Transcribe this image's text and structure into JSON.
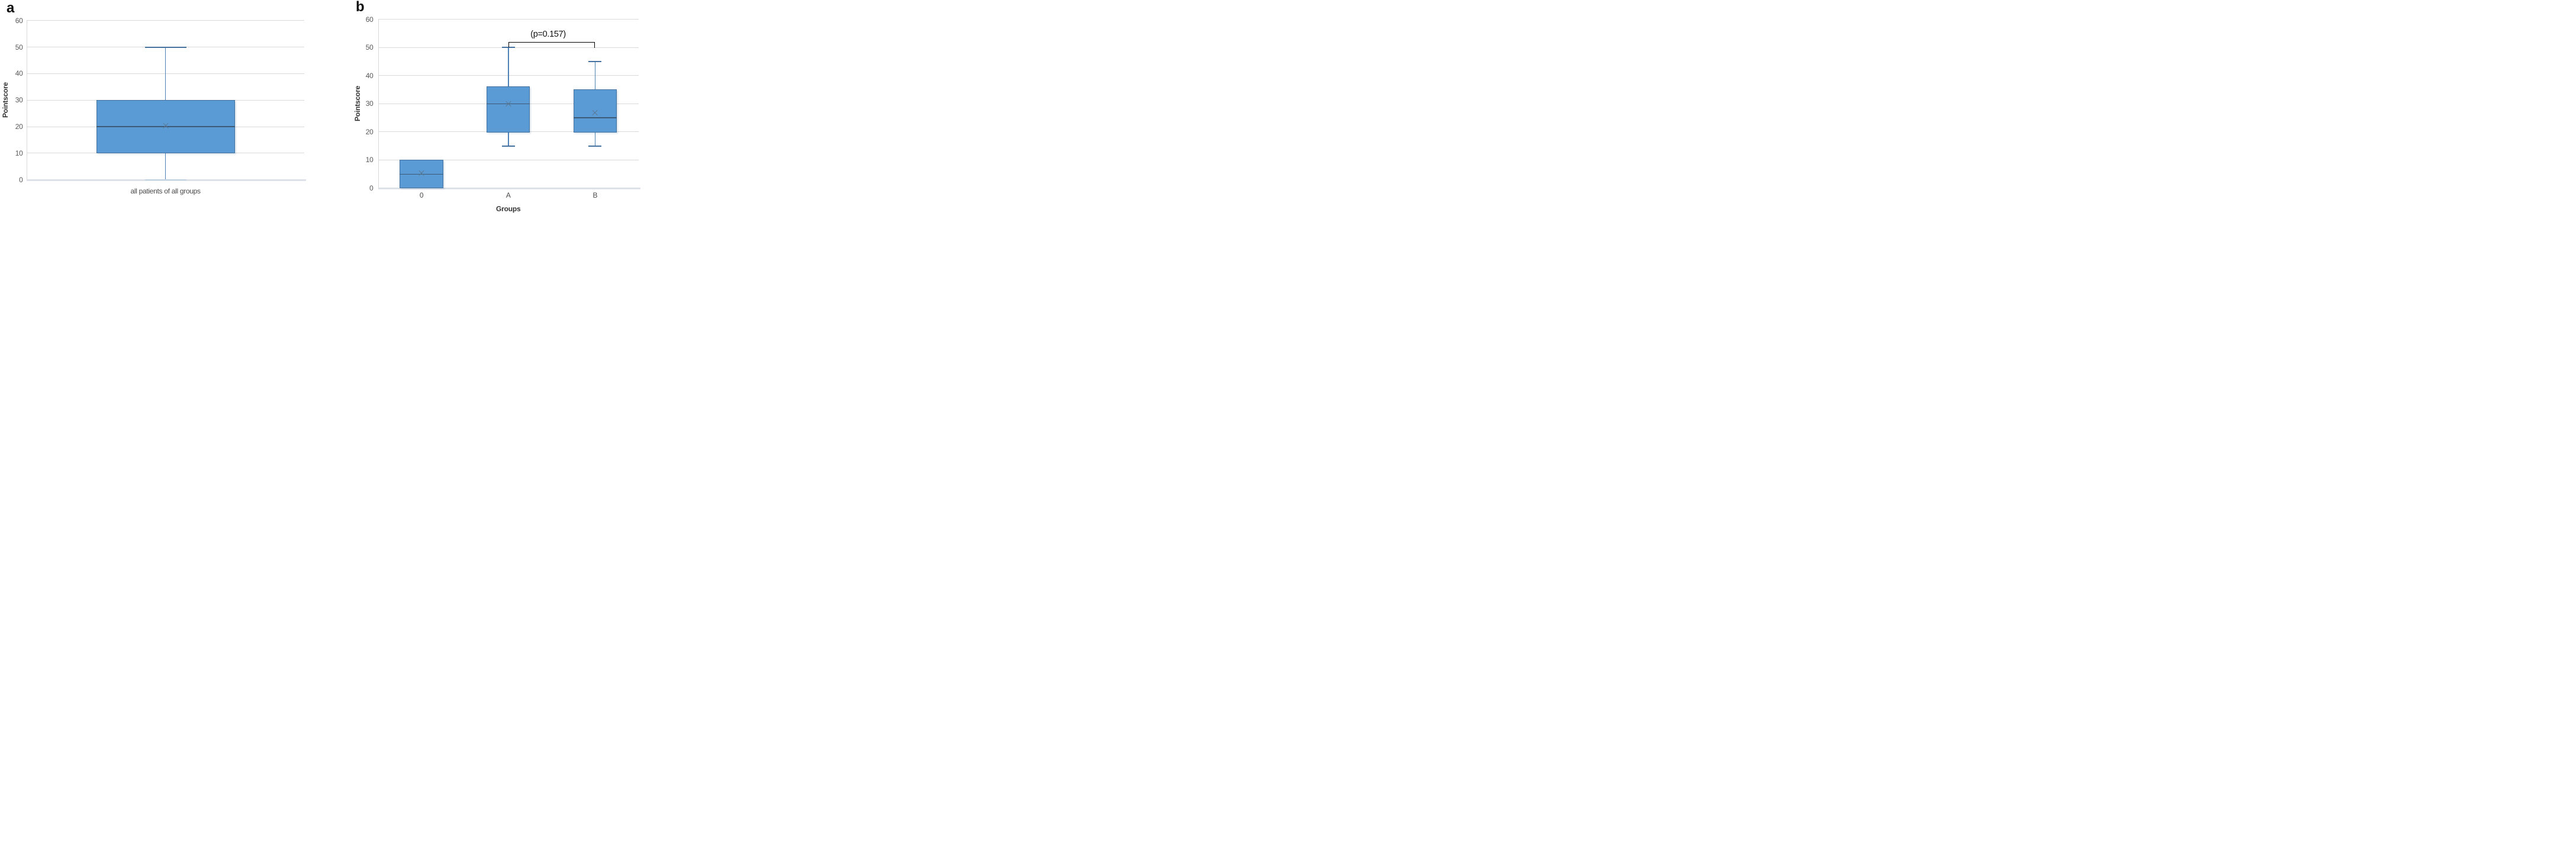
{
  "figure_title": "",
  "colors": {
    "box_fill": "#5B9BD5",
    "box_border": "#41719C",
    "whisker_line": "#4D82B8",
    "whisker_cap": "#41719C",
    "whisker_cap_at_zero": "#C2D3E4",
    "median_line": "#3D5A76",
    "mean_marker": "#5B7691",
    "gridline": "#D9D9D9",
    "axis_line": "#DDE2E8",
    "tick_label": "#595959",
    "axis_title": "#333333",
    "panel_letter": "#111111",
    "annotation": "#000000"
  },
  "chart_data": [
    {
      "panel": "a",
      "type": "box",
      "title": "",
      "ylabel": "Pointscore",
      "xlabel": "",
      "ylim": [
        0,
        60
      ],
      "yticks": [
        0,
        10,
        20,
        30,
        40,
        50,
        60
      ],
      "grid": "horizontal",
      "legend": "none",
      "mean_marker": "x",
      "categories": [
        "all patients of all groups"
      ],
      "boxes": [
        {
          "category": "all patients of all groups",
          "whisker_low": 0,
          "q1": 10,
          "median": 20,
          "q3": 30,
          "whisker_high": 50,
          "mean": 20.2
        }
      ]
    },
    {
      "panel": "b",
      "type": "box",
      "title": "",
      "ylabel": "Pointscore",
      "xlabel": "Groups",
      "ylim": [
        0,
        60
      ],
      "yticks": [
        0,
        10,
        20,
        30,
        40,
        50,
        60
      ],
      "grid": "horizontal",
      "legend": "none",
      "mean_marker": "x",
      "categories": [
        "0",
        "A",
        "B"
      ],
      "boxes": [
        {
          "category": "0",
          "whisker_low": 0,
          "q1": 0,
          "median": 5,
          "q3": 10,
          "whisker_high": 10,
          "mean": 5.3
        },
        {
          "category": "A",
          "whisker_low": 15,
          "q1": 19.75,
          "median": 30,
          "q3": 36.25,
          "whisker_high": 50,
          "mean": 30
        },
        {
          "category": "B",
          "whisker_low": 15,
          "q1": 19.75,
          "median": 25,
          "q3": 35,
          "whisker_high": 45,
          "mean": 26.7
        }
      ],
      "annotation": {
        "label": "(p=0.157)",
        "from_category": "A",
        "to_category": "B",
        "bar_value": 52.0,
        "left_leg_end_value": 50.1,
        "right_leg_end_value": 49.9
      }
    }
  ]
}
